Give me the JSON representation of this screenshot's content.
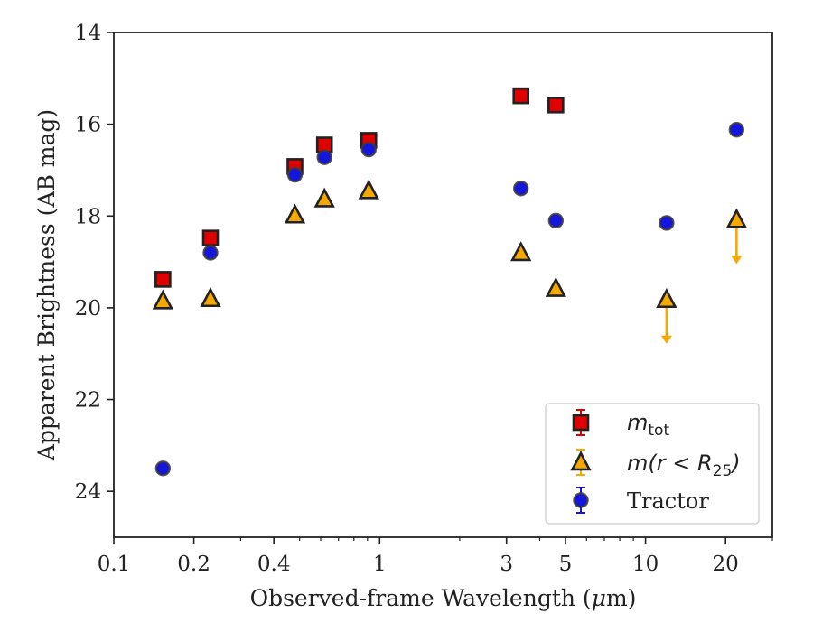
{
  "chart_data": {
    "type": "scatter",
    "xlabel_text": "Observed-frame Wavelength (",
    "xlabel_mu": "μ",
    "xlabel_unit": "m)",
    "ylabel": "Apparent Brightness (AB mag)",
    "x_scale": "log",
    "xlim": [
      0.1,
      30
    ],
    "ylim": [
      25,
      14
    ],
    "y_inverted": true,
    "grid": false,
    "legend_position": "lower-right",
    "x_ticks": [
      {
        "value": 0.1,
        "label": "0.1"
      },
      {
        "value": 0.2,
        "label": "0.2"
      },
      {
        "value": 0.4,
        "label": "0.4"
      },
      {
        "value": 1,
        "label": "1"
      },
      {
        "value": 3,
        "label": "3"
      },
      {
        "value": 5,
        "label": "5"
      },
      {
        "value": 10,
        "label": "10"
      },
      {
        "value": 20,
        "label": "20"
      }
    ],
    "y_ticks": [
      {
        "value": 14,
        "label": "14"
      },
      {
        "value": 16,
        "label": "16"
      },
      {
        "value": 18,
        "label": "18"
      },
      {
        "value": 20,
        "label": "20"
      },
      {
        "value": 22,
        "label": "22"
      },
      {
        "value": 24,
        "label": "24"
      }
    ],
    "series": [
      {
        "name": "m_tot",
        "legend_main": "m",
        "legend_sub": "tot",
        "marker": "square",
        "color": "#e00000",
        "edge": "#222222",
        "points": [
          {
            "x": 0.153,
            "y": 19.38
          },
          {
            "x": 0.231,
            "y": 18.48
          },
          {
            "x": 0.48,
            "y": 16.92
          },
          {
            "x": 0.62,
            "y": 16.45
          },
          {
            "x": 0.91,
            "y": 16.35
          },
          {
            "x": 3.4,
            "y": 15.38
          },
          {
            "x": 4.6,
            "y": 15.58
          }
        ]
      },
      {
        "name": "m(r<R25)",
        "legend_main": "m(r < R",
        "legend_sub": "25",
        "legend_close": ")",
        "marker": "triangle",
        "color": "#f5a800",
        "edge": "#222222",
        "points": [
          {
            "x": 0.153,
            "y": 19.85
          },
          {
            "x": 0.231,
            "y": 19.8
          },
          {
            "x": 0.48,
            "y": 17.98
          },
          {
            "x": 0.62,
            "y": 17.63
          },
          {
            "x": 0.91,
            "y": 17.45
          },
          {
            "x": 3.4,
            "y": 18.8
          },
          {
            "x": 4.6,
            "y": 19.58
          },
          {
            "x": 12,
            "y": 19.82,
            "upper_limit": true
          },
          {
            "x": 22,
            "y": 18.08,
            "upper_limit": true
          }
        ]
      },
      {
        "name": "Tractor",
        "legend_main": "Tractor",
        "marker": "circle",
        "color": "#1515e0",
        "edge": "#3a3a3a",
        "points": [
          {
            "x": 0.153,
            "y": 23.5
          },
          {
            "x": 0.231,
            "y": 18.8
          },
          {
            "x": 0.48,
            "y": 17.1
          },
          {
            "x": 0.62,
            "y": 16.72
          },
          {
            "x": 0.91,
            "y": 16.55
          },
          {
            "x": 3.4,
            "y": 17.4
          },
          {
            "x": 4.6,
            "y": 18.1
          },
          {
            "x": 12,
            "y": 18.15
          },
          {
            "x": 22,
            "y": 16.12
          }
        ]
      }
    ]
  }
}
